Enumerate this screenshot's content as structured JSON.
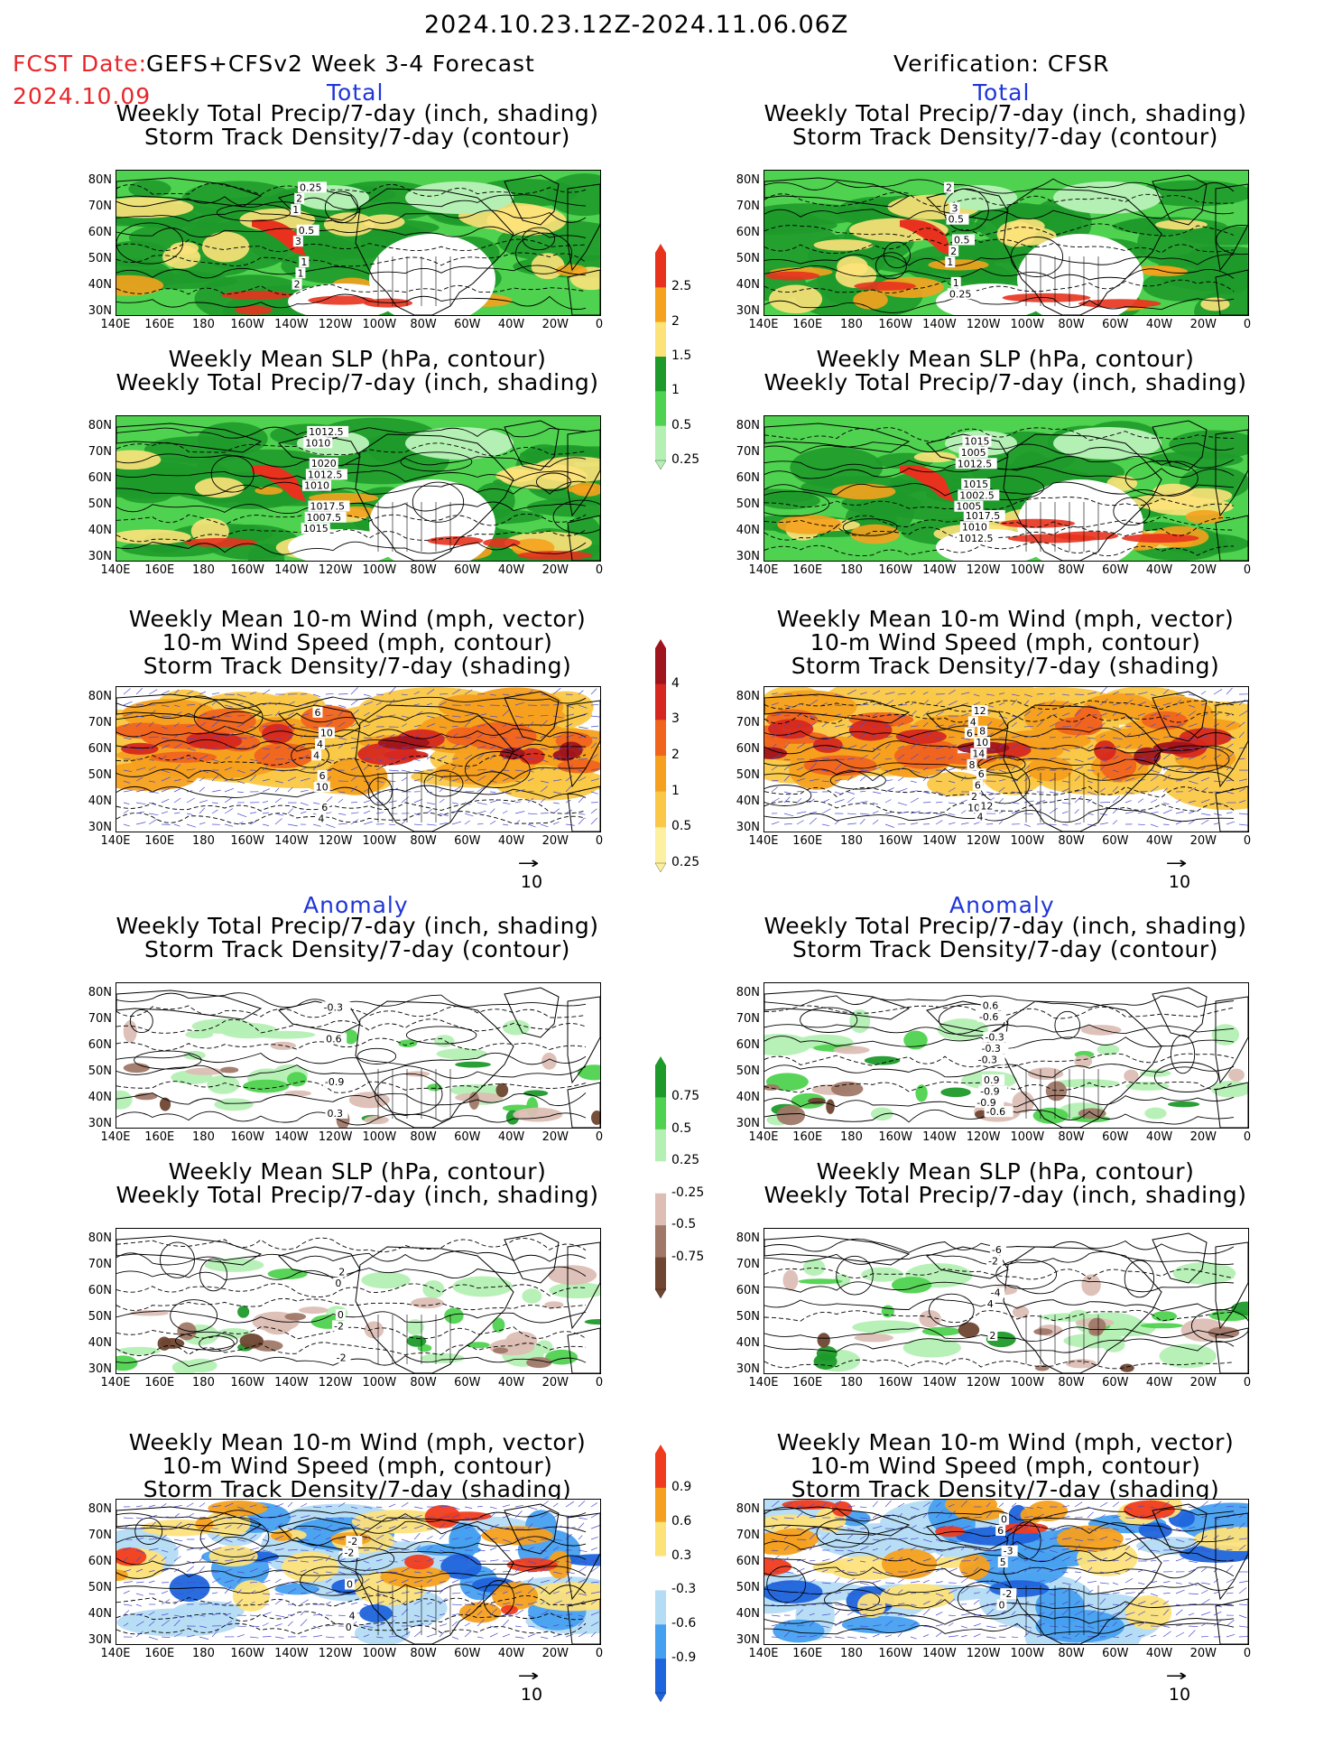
{
  "header": {
    "date_range": "2024.10.23.12Z-2024.11.06.06Z",
    "fcst_label": "FCST Date:",
    "fcst_model": "GEFS+CFSv2 Week 3-4 Forecast",
    "fcst_date": "2024.10.09",
    "verification": "Verification: CFSR"
  },
  "sections": {
    "total": "Total",
    "anomaly": "Anomaly"
  },
  "panel_titles": {
    "precip_storm": [
      "Weekly Total Precip/7-day (inch, shading)",
      "Storm Track Density/7-day (contour)"
    ],
    "slp_precip": [
      "Weekly Mean SLP (hPa, contour)",
      "Weekly Total Precip/7-day (inch, shading)"
    ],
    "wind_storm": [
      "Weekly Mean 10-m Wind (mph, vector)",
      "10-m Wind Speed (mph, contour)",
      "Storm Track Density/7-day (shading)"
    ]
  },
  "axes": {
    "lat_labels": [
      "80N",
      "70N",
      "60N",
      "50N",
      "40N",
      "30N"
    ],
    "lon_labels": [
      "140E",
      "160E",
      "180",
      "160W",
      "140W",
      "120W",
      "100W",
      "80W",
      "60W",
      "40W",
      "20W",
      "0"
    ]
  },
  "vector_ref": "10",
  "colorbars": {
    "precip_total": {
      "labels": [
        "2.5",
        "2",
        "1.5",
        "1",
        "0.5",
        "0.25"
      ],
      "colors": [
        "#e8321e",
        "#f5a21e",
        "#fde27a",
        "#1e9a2a",
        "#4fd24f",
        "#b4f0b4"
      ]
    },
    "storm_total": {
      "labels": [
        "4",
        "3",
        "2",
        "1",
        "0.5",
        "0.25"
      ],
      "colors": [
        "#a0141e",
        "#d6281e",
        "#f0641e",
        "#f5a01e",
        "#fac846",
        "#fdf0a0"
      ]
    },
    "precip_anom": {
      "labels": [
        "0.75",
        "0.5",
        "0.25",
        "-0.25",
        "-0.5",
        "-0.75"
      ],
      "colors": [
        "#1e9a2a",
        "#4fd24f",
        "#b4f0b4",
        "#ffffff",
        "#dcbeb4",
        "#a07868",
        "#6e4632"
      ]
    },
    "storm_anom": {
      "labels": [
        "0.9",
        "0.6",
        "0.3",
        "-0.3",
        "-0.6",
        "-0.9"
      ],
      "colors": [
        "#f03c1e",
        "#f5a01e",
        "#fde27a",
        "#ffffff",
        "#b4dcf5",
        "#46a0f0",
        "#1e64dc"
      ]
    }
  },
  "contour_labels": {
    "p1": [
      "1",
      "2",
      "3",
      "2",
      "1",
      "0.5",
      "0.25",
      "1"
    ],
    "p2": [
      "2",
      "1",
      "0.5",
      "0.25",
      "2",
      "3",
      "1",
      "0.5"
    ],
    "p3": [
      "1015",
      "1010",
      "1010",
      "1007.5",
      "1012.5",
      "1012.5",
      "1017.5",
      "1020"
    ],
    "p4": [
      "1005",
      "1012.5",
      "1012.5",
      "1002.5",
      "1005",
      "1010",
      "1015",
      "1015",
      "1017.5"
    ],
    "p5": [
      "4",
      "6",
      "10",
      "4",
      "4",
      "6",
      "10",
      "6"
    ],
    "p6": [
      "6",
      "10",
      "8",
      "4",
      "2",
      "14",
      "12",
      "6",
      "10",
      "4",
      "6",
      "8",
      "12"
    ],
    "p7": [
      "-0.3",
      "-0.9",
      "0.6",
      "0.3"
    ],
    "p8": [
      "-0.9",
      "-0.3",
      "-0.6",
      "-0.9",
      "-0.3",
      "0.6",
      "0.9",
      "-0.3",
      "-0.6"
    ],
    "p9": [
      "-2",
      "0",
      "-2",
      "0",
      "2"
    ],
    "p10": [
      "4",
      "-2",
      "2",
      "-4",
      "-6"
    ],
    "p11": [
      "-2",
      "0",
      "0",
      "-2",
      "4"
    ],
    "p12": [
      "6",
      "0",
      "5",
      "0",
      "-2",
      "-3"
    ]
  }
}
